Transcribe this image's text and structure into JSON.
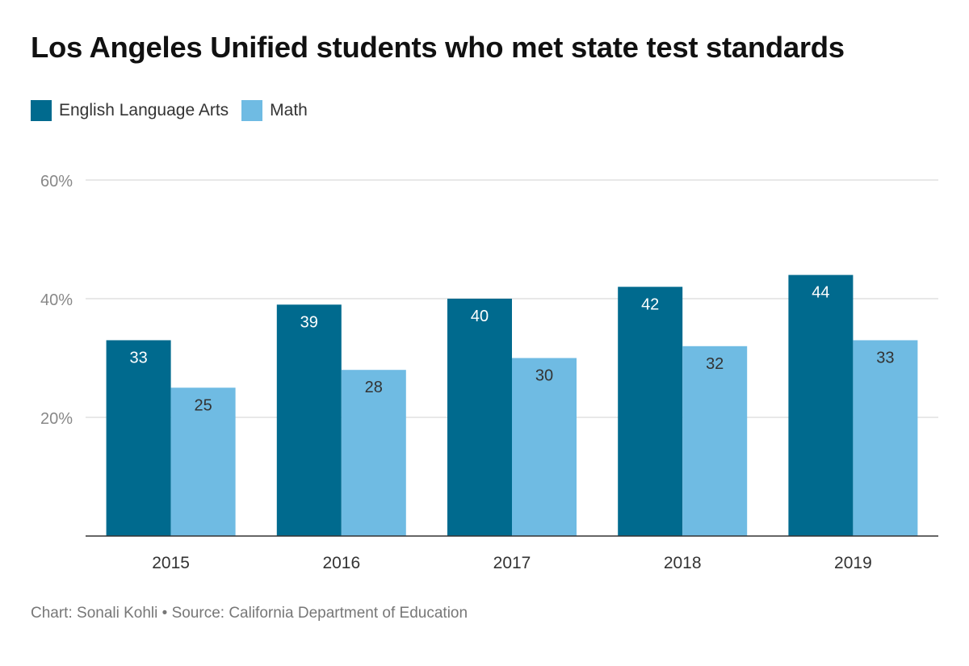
{
  "chart_data": {
    "type": "bar",
    "title": "Los Angeles Unified students who met state test standards",
    "categories": [
      "2015",
      "2016",
      "2017",
      "2018",
      "2019"
    ],
    "series": [
      {
        "name": "English Language Arts",
        "color": "#006a8e",
        "values": [
          33,
          39,
          40,
          42,
          44
        ],
        "labels": [
          "33",
          "39",
          "40",
          "42",
          "44"
        ],
        "label_color": "#ffffff"
      },
      {
        "name": "Math",
        "color": "#6fbbe3",
        "values": [
          25,
          28,
          30,
          32,
          33
        ],
        "labels": [
          "25",
          "28",
          "30",
          "32",
          "33"
        ],
        "label_color": "#333333"
      }
    ],
    "yticks": [
      20,
      40,
      60
    ],
    "ytick_labels": [
      "20%",
      "40%",
      "60%"
    ],
    "ylim": [
      0,
      60
    ],
    "grid": true,
    "legend_position": "top-left",
    "xlabel": "",
    "ylabel": ""
  },
  "footer": {
    "credit": "Chart: Sonali Kohli • Source: California Department of Education"
  }
}
